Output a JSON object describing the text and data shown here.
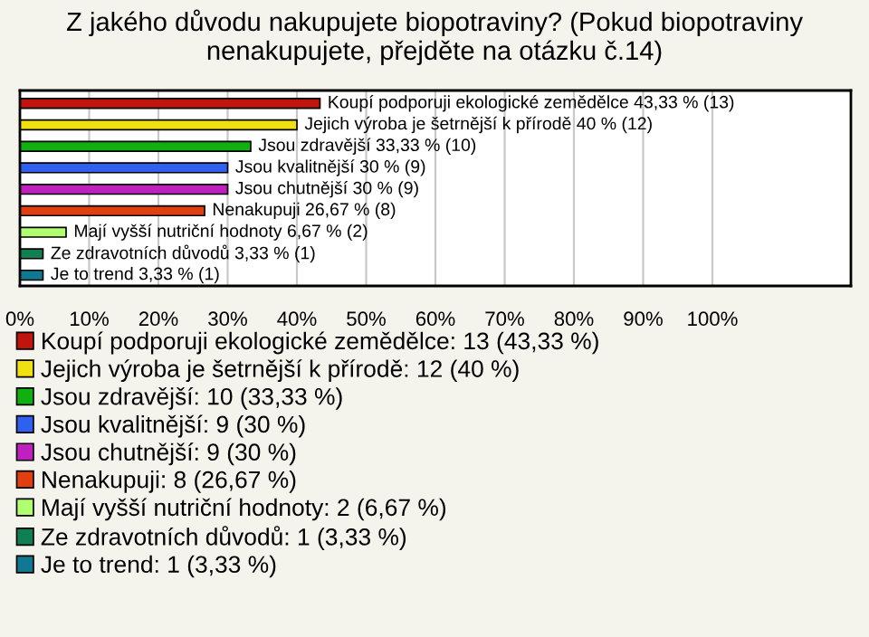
{
  "chart_data": {
    "type": "bar",
    "orientation": "horizontal",
    "title": "Z jakého důvodu nakupujete biopotraviny? (Pokud biopotraviny nenakupujete, přejděte na otázku č.14)",
    "categories": [
      null,
      null,
      null,
      null,
      null,
      null,
      null,
      null,
      null
    ],
    "series": [
      {
        "name": "Koupí podporuji ekologické zemědělce: 13 (43,33 %)",
        "color": "#c0140c",
        "values": [
          43.33,
          null,
          null,
          null,
          null,
          null,
          null,
          null,
          null
        ],
        "value_labels": [
          "Koupí podporuji ekologické zemědělce 43,33 % (13)",
          null,
          null,
          null,
          null,
          null,
          null,
          null,
          null
        ]
      },
      {
        "name": "Jejich výroba je šetrnější k přírodě: 12 (40 %)",
        "color": "#f0e010",
        "values": [
          null,
          40,
          null,
          null,
          null,
          null,
          null,
          null,
          null
        ],
        "value_labels": [
          null,
          "Jejich výroba je šetrnější k přírodě 40 % (12)",
          null,
          null,
          null,
          null,
          null,
          null,
          null
        ]
      },
      {
        "name": "Jsou zdravější: 10 (33,33 %)",
        "color": "#10b010",
        "values": [
          null,
          null,
          33.33,
          null,
          null,
          null,
          null,
          null,
          null
        ],
        "value_labels": [
          null,
          null,
          "Jsou zdravější 33,33 % (10)",
          null,
          null,
          null,
          null,
          null,
          null
        ]
      },
      {
        "name": "Jsou kvalitnější: 9 (30 %)",
        "color": "#3060f0",
        "values": [
          null,
          null,
          null,
          30,
          null,
          null,
          null,
          null,
          null
        ],
        "value_labels": [
          null,
          null,
          null,
          "Jsou kvalitnější 30 % (9)",
          null,
          null,
          null,
          null,
          null
        ]
      },
      {
        "name": "Jsou chutnější: 9 (30 %)",
        "color": "#c020c0",
        "values": [
          null,
          null,
          null,
          null,
          30,
          null,
          null,
          null,
          null
        ],
        "value_labels": [
          null,
          null,
          null,
          null,
          "Jsou chutnější 30 % (9)",
          null,
          null,
          null,
          null
        ]
      },
      {
        "name": "Nenakupuji: 8 (26,67 %)",
        "color": "#e04010",
        "values": [
          null,
          null,
          null,
          null,
          null,
          26.67,
          null,
          null,
          null
        ],
        "value_labels": [
          null,
          null,
          null,
          null,
          null,
          "Nenakupuji 26,67 % (8)",
          null,
          null,
          null
        ]
      },
      {
        "name": "Mají vyšší nutriční hodnoty: 2 (6,67 %)",
        "color": "#b0ff70",
        "values": [
          null,
          null,
          null,
          null,
          null,
          null,
          6.67,
          null,
          null
        ],
        "value_labels": [
          null,
          null,
          null,
          null,
          null,
          null,
          "Mají vyšší nutriční hodnoty 6,67 % (2)",
          null,
          null
        ]
      },
      {
        "name": "Ze zdravotních důvodů: 1 (3,33 %)",
        "color": "#108050",
        "values": [
          null,
          null,
          null,
          null,
          null,
          null,
          null,
          3.33,
          null
        ],
        "value_labels": [
          null,
          null,
          null,
          null,
          null,
          null,
          null,
          "Ze zdravotních důvodů 3,33 % (1)",
          null
        ]
      },
      {
        "name": "Je to trend: 1 (3,33 %)",
        "color": "#107890",
        "values": [
          null,
          null,
          null,
          null,
          null,
          null,
          null,
          null,
          3.33
        ],
        "value_labels": [
          null,
          null,
          null,
          null,
          null,
          null,
          null,
          null,
          "Je to trend 3,33 % (1)"
        ]
      }
    ],
    "xlim": [
      0,
      120
    ],
    "xticks": [
      {
        "value": 0,
        "label": "0%"
      },
      {
        "value": 10,
        "label": "10%"
      },
      {
        "value": 20,
        "label": "20%"
      },
      {
        "value": 30,
        "label": "30%"
      },
      {
        "value": 40,
        "label": "40%"
      },
      {
        "value": 50,
        "label": "50%"
      },
      {
        "value": 60,
        "label": "60%"
      },
      {
        "value": 70,
        "label": "70%"
      },
      {
        "value": 80,
        "label": "80%"
      },
      {
        "value": 90,
        "label": "90%"
      },
      {
        "value": 100,
        "label": "100%"
      }
    ],
    "grid": "x",
    "legend": "bottom"
  }
}
